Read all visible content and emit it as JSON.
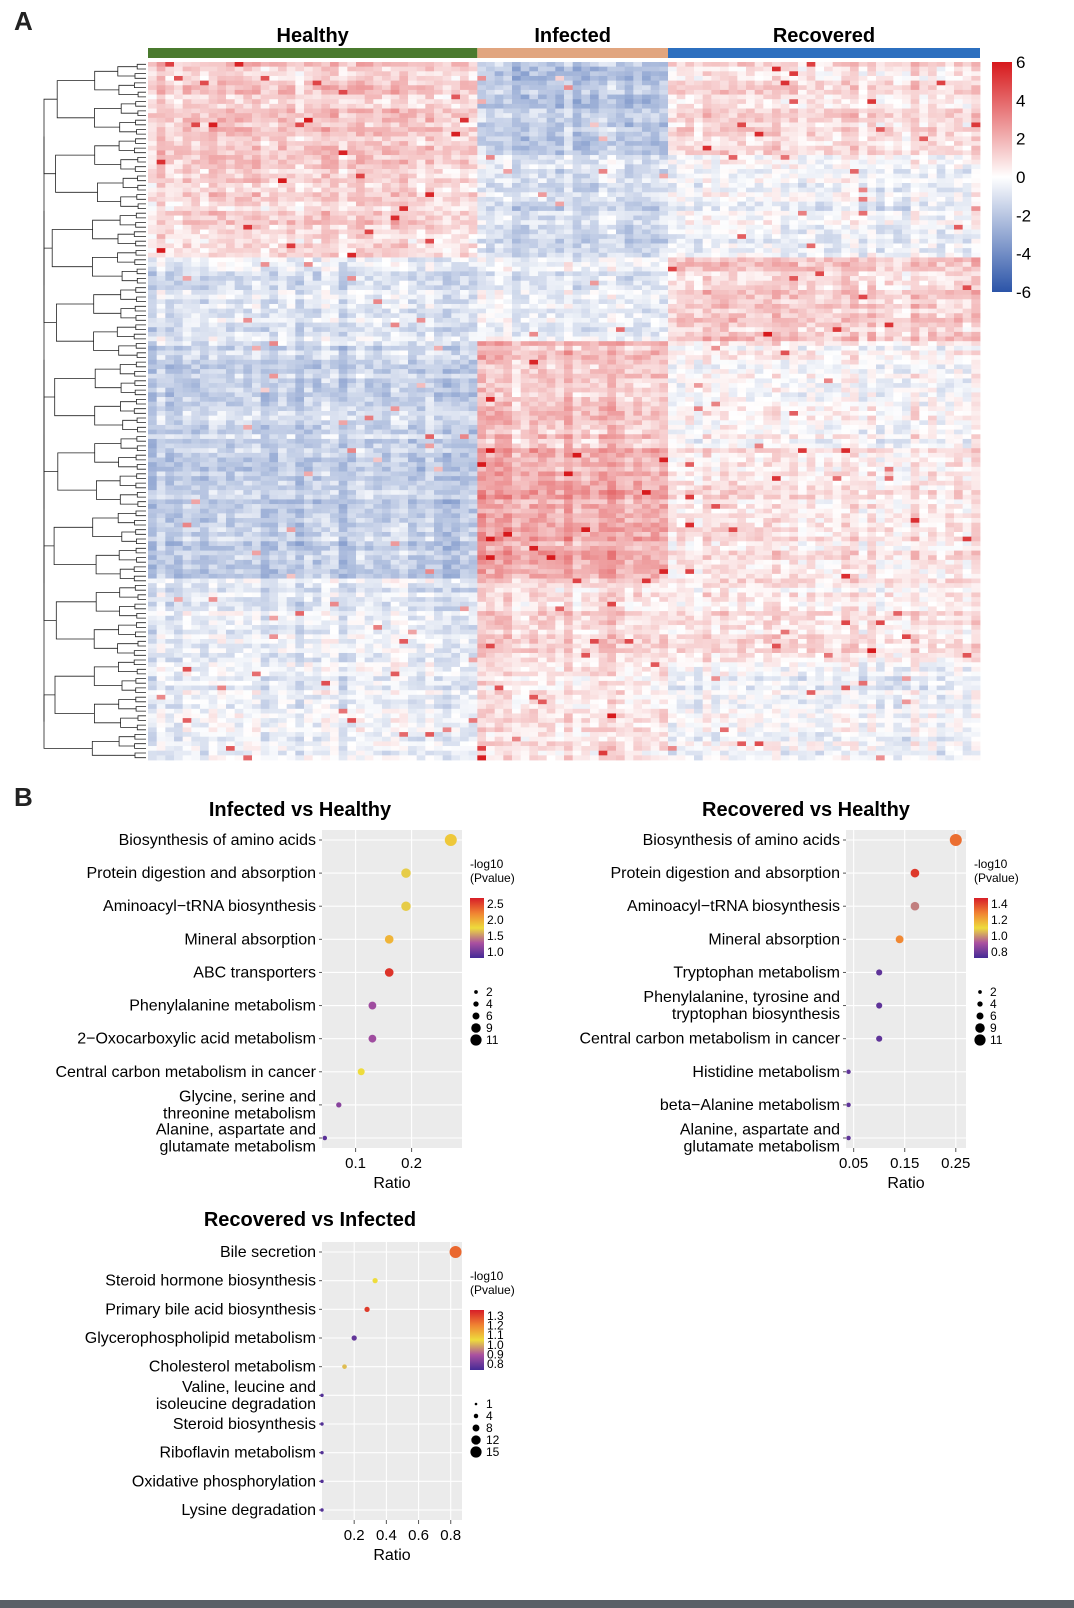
{
  "panels": {
    "a": "A",
    "b": "B"
  },
  "heatmap": {
    "groups": [
      {
        "name": "Healthy",
        "color": "#4a7a2e",
        "columns": 38
      },
      {
        "name": "Infected",
        "color": "#e1a57f",
        "columns": 22
      },
      {
        "name": "Recovered",
        "color": "#2c6fbf",
        "columns": 36
      }
    ],
    "colorbar": {
      "ticks": [
        "6",
        "4",
        "2",
        "0",
        "-2",
        "-4",
        "-6"
      ],
      "min": -6,
      "max": 6,
      "colors": [
        "#d7191c",
        "#ffffff",
        "#2b54a8"
      ]
    }
  },
  "chart_data": [
    {
      "type": "heatmap",
      "title": "",
      "column_groups": [
        "Healthy",
        "Infected",
        "Recovered"
      ],
      "group_sizes": [
        38,
        22,
        36
      ],
      "rows": 150,
      "value_range": [
        -6,
        6
      ],
      "colorbar_ticks": [
        6,
        4,
        2,
        0,
        -2,
        -4,
        -6
      ],
      "row_dendrogram": true
    },
    {
      "type": "scatter",
      "title": "Infected vs Healthy",
      "xlabel": "Ratio",
      "xticks": [
        "0.1",
        "0.2"
      ],
      "xlim": [
        0.04,
        0.29
      ],
      "color_legend": {
        "title": "-log10\n(Pvalue)",
        "ticks": [
          "2.5",
          "2.0",
          "1.5",
          "1.0"
        ],
        "range": [
          0.8,
          2.6
        ]
      },
      "size_legend": [
        "2",
        "4",
        "6",
        "9",
        "11"
      ],
      "terms": [
        "Biosynthesis of amino acids",
        "Protein digestion and absorption",
        "Aminoacyl−tRNA biosynthesis",
        "Mineral absorption",
        "ABC transporters",
        "Phenylalanine metabolism",
        "2−Oxocarboxylic acid metabolism",
        "Central carbon metabolism in cancer",
        "Glycine, serine and\nthreonine metabolism",
        "Alanine, aspartate and\nglutamate metabolism"
      ],
      "ratio": [
        0.27,
        0.19,
        0.19,
        0.16,
        0.16,
        0.13,
        0.13,
        0.11,
        0.07,
        0.045
      ],
      "neglog10p": [
        1.8,
        1.65,
        1.65,
        1.9,
        2.5,
        1.2,
        1.2,
        1.7,
        1.1,
        0.9
      ],
      "count": [
        11,
        8,
        8,
        7,
        7,
        6,
        6,
        5,
        3,
        2
      ]
    },
    {
      "type": "scatter",
      "title": "Recovered vs Healthy",
      "xlabel": "Ratio",
      "xticks": [
        "0.05",
        "0.15",
        "0.25"
      ],
      "xlim": [
        0.035,
        0.27
      ],
      "color_legend": {
        "title": "-log10\n(Pvalue)",
        "ticks": [
          "1.4",
          "1.2",
          "1.0",
          "0.8"
        ],
        "range": [
          0.7,
          1.45
        ]
      },
      "size_legend": [
        "2",
        "4",
        "6",
        "9",
        "11"
      ],
      "terms": [
        "Biosynthesis of amino acids",
        "Protein digestion and absorption",
        "Aminoacyl−tRNA biosynthesis",
        "Mineral absorption",
        "Tryptophan metabolism",
        "Phenylalanine, tyrosine and\ntryptophan biosynthesis",
        "Central carbon metabolism in cancer",
        "Histidine metabolism",
        "beta−Alanine metabolism",
        "Alanine, aspartate and\nglutamate metabolism"
      ],
      "ratio": [
        0.25,
        0.17,
        0.17,
        0.14,
        0.1,
        0.1,
        0.1,
        0.04,
        0.04,
        0.04
      ],
      "neglog10p": [
        1.3,
        1.4,
        0.95,
        1.25,
        0.75,
        0.75,
        0.75,
        0.75,
        0.75,
        0.75
      ],
      "count": [
        11,
        7,
        7,
        6,
        4,
        4,
        4,
        2,
        2,
        2
      ]
    },
    {
      "type": "scatter",
      "title": "Recovered vs Infected",
      "xlabel": "Ratio",
      "xticks": [
        "0.2",
        "0.4",
        "0.6",
        "0.8"
      ],
      "xlim": [
        0.0,
        0.87
      ],
      "color_legend": {
        "title": "-log10\n(Pvalue)",
        "ticks": [
          "1.3",
          "1.2",
          "1.1",
          "1.0",
          "0.9",
          "0.8"
        ],
        "range": [
          0.78,
          1.32
        ]
      },
      "size_legend": [
        "1",
        "4",
        "8",
        "12",
        "15"
      ],
      "terms": [
        "Bile secretion",
        "Steroid hormone biosynthesis",
        "Primary bile acid biosynthesis",
        "Glycerophospholipid metabolism",
        "Cholesterol metabolism",
        "Valine, leucine and\nisoleucine degradation",
        "Steroid biosynthesis",
        "Riboflavin metabolism",
        "Oxidative phosphorylation",
        "Lysine degradation"
      ],
      "ratio": [
        0.83,
        0.33,
        0.28,
        0.2,
        0.14,
        0.0,
        0.0,
        0.0,
        0.0,
        0.0
      ],
      "neglog10p": [
        1.22,
        1.05,
        1.28,
        0.82,
        1.02,
        0.8,
        0.8,
        0.8,
        0.8,
        0.8
      ],
      "count": [
        15,
        4,
        4,
        4,
        3,
        1,
        1,
        1,
        1,
        1
      ]
    }
  ]
}
